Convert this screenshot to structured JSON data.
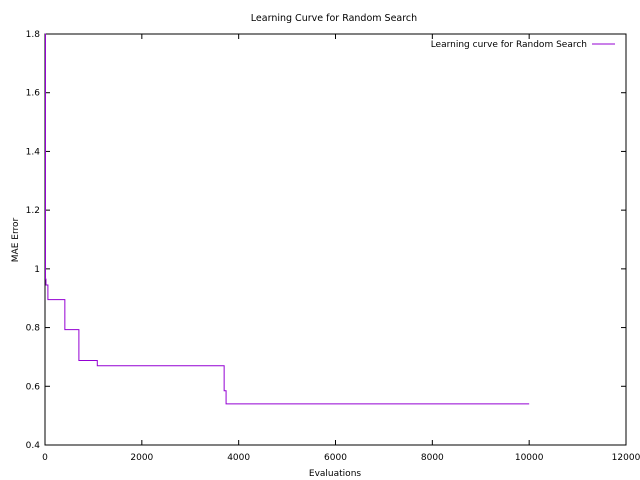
{
  "chart_data": {
    "type": "line",
    "title": "Learning Curve for Random Search",
    "xlabel": "Evaluations",
    "ylabel": "MAE Error",
    "xlim": [
      0,
      12000
    ],
    "ylim": [
      0.4,
      1.8
    ],
    "xticks": [
      0,
      2000,
      4000,
      6000,
      8000,
      10000,
      12000
    ],
    "yticks": [
      0.4,
      0.6,
      0.8,
      1,
      1.2,
      1.4,
      1.6,
      1.8
    ],
    "xtick_labels": [
      "0",
      "2000",
      "4000",
      "6000",
      "8000",
      "10000",
      "12000"
    ],
    "ytick_labels": [
      "0.4",
      "0.6",
      "0.8",
      "1",
      "1.2",
      "1.4",
      "1.6",
      "1.8"
    ],
    "grid": false,
    "legend": "top-right",
    "series": [
      {
        "name": "Learning curve for Random Search",
        "color": "#9400d3",
        "step": true,
        "x": [
          1,
          10,
          20,
          60,
          410,
          700,
          1080,
          3700,
          3740,
          10000
        ],
        "y": [
          1.8,
          0.965,
          0.945,
          0.895,
          0.793,
          0.688,
          0.67,
          0.585,
          0.54,
          0.54
        ]
      }
    ]
  }
}
